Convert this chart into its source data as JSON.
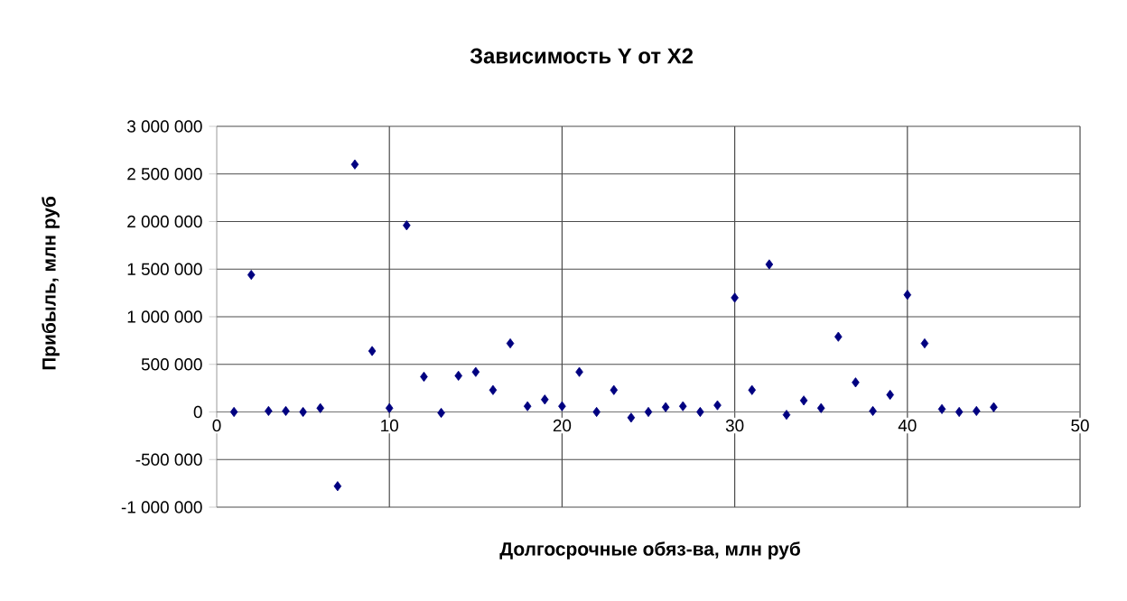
{
  "chart_data": {
    "type": "scatter",
    "title": "Зависимость Y от X2",
    "xlabel": "Долгосрочные обяз-ва, млн руб",
    "ylabel": "Прибыль, млн руб",
    "x": [
      1,
      2,
      3,
      4,
      5,
      6,
      7,
      8,
      9,
      10,
      11,
      12,
      13,
      14,
      15,
      16,
      17,
      18,
      19,
      20,
      21,
      22,
      23,
      24,
      25,
      26,
      27,
      28,
      29,
      30,
      31,
      32,
      33,
      34,
      35,
      36,
      37,
      38,
      39,
      40,
      41,
      42,
      43,
      44,
      45
    ],
    "series": [
      {
        "color": "#000080",
        "values": [
          0,
          1440000,
          10000,
          10000,
          0,
          40000,
          -780000,
          2600000,
          640000,
          40000,
          1960000,
          370000,
          -10000,
          380000,
          420000,
          230000,
          720000,
          60000,
          130000,
          60000,
          420000,
          0,
          230000,
          -60000,
          0,
          50000,
          60000,
          0,
          70000,
          1200000,
          230000,
          1550000,
          -30000,
          120000,
          40000,
          790000,
          310000,
          10000,
          180000,
          1230000,
          720000,
          30000,
          0,
          10000,
          50000
        ]
      }
    ],
    "xlim": [
      0,
      50
    ],
    "xticks": [
      0,
      10,
      20,
      30,
      40,
      50
    ],
    "ylim": [
      -1000000,
      3000000
    ],
    "yticks": [
      {
        "value": -1000000,
        "label": "-1 000 000"
      },
      {
        "value": -500000,
        "label": "-500 000"
      },
      {
        "value": 0,
        "label": "0"
      },
      {
        "value": 500000,
        "label": "500 000"
      },
      {
        "value": 1000000,
        "label": "1 000 000"
      },
      {
        "value": 1500000,
        "label": "1 500 000"
      },
      {
        "value": 2000000,
        "label": "2 000 000"
      },
      {
        "value": 2500000,
        "label": "2 500 000"
      },
      {
        "value": 3000000,
        "label": "3 000 000"
      }
    ],
    "grid": true,
    "marker": "diamond",
    "legend": false
  }
}
